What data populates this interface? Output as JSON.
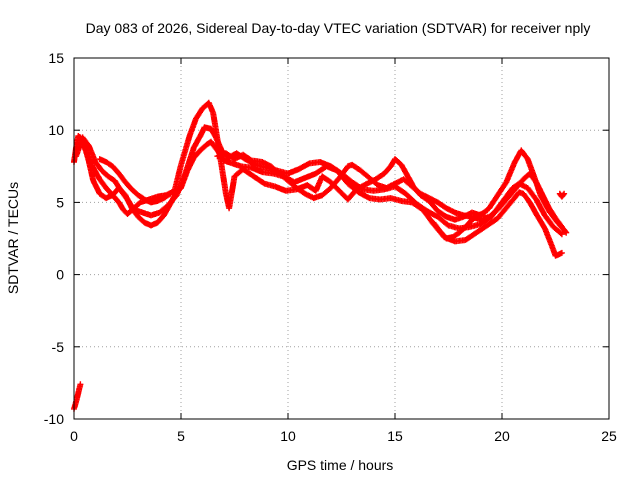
{
  "chart_data": {
    "type": "scatter",
    "title": "Day 083 of 2026, Sidereal Day-to-day VTEC variation (SDTVAR) for receiver nply",
    "xlabel": "GPS time / hours",
    "ylabel": "SDTVAR / TECUs",
    "xlim": [
      0,
      25
    ],
    "ylim": [
      -10,
      15
    ],
    "x_ticks": [
      0,
      5,
      10,
      15,
      20,
      25
    ],
    "x_tick_labels": [
      "0",
      "5",
      "10",
      "15",
      "20",
      "25"
    ],
    "y_ticks": [
      -10,
      -5,
      0,
      5,
      10,
      15
    ],
    "y_tick_labels": [
      "-10",
      "-5",
      "0",
      "5",
      "10",
      "15"
    ],
    "grid": true,
    "marker": "plus",
    "series": [
      {
        "name": "nply",
        "color": "#ff0000",
        "tracks": [
          [
            [
              0,
              -9.3
            ],
            [
              0.1,
              -8.8
            ],
            [
              0.2,
              -8.2
            ],
            [
              0.3,
              -7.6
            ]
          ],
          [
            [
              0,
              7.8
            ],
            [
              0.1,
              8.8
            ],
            [
              0.2,
              9.6
            ],
            [
              0.35,
              9.4
            ],
            [
              0.5,
              8.9
            ],
            [
              0.7,
              7.8
            ],
            [
              0.9,
              6.5
            ],
            [
              1.2,
              5.6
            ],
            [
              1.5,
              5.3
            ],
            [
              1.8,
              5.5
            ],
            [
              2.1,
              6.0
            ],
            [
              2.4,
              5.5
            ],
            [
              2.7,
              4.6
            ],
            [
              3.0,
              4.0
            ],
            [
              3.3,
              3.6
            ],
            [
              3.6,
              3.4
            ],
            [
              3.9,
              3.6
            ],
            [
              4.2,
              4.1
            ],
            [
              4.5,
              4.9
            ],
            [
              4.75,
              5.6
            ],
            [
              5.0,
              6.0
            ],
            [
              5.3,
              7.2
            ],
            [
              5.6,
              8.1
            ],
            [
              5.9,
              8.6
            ],
            [
              6.2,
              9.0
            ],
            [
              6.4,
              9.2
            ],
            [
              6.7,
              8.6
            ],
            [
              7.0,
              7.9
            ],
            [
              7.4,
              7.7
            ],
            [
              7.8,
              7.5
            ],
            [
              8.3,
              7.4
            ],
            [
              8.8,
              7.1
            ],
            [
              9.3,
              7.0
            ],
            [
              9.8,
              6.8
            ],
            [
              10.3,
              6.4
            ],
            [
              10.8,
              6.7
            ],
            [
              11.3,
              7.0
            ],
            [
              11.8,
              7.5
            ],
            [
              12.3,
              7.2
            ],
            [
              12.8,
              6.3
            ],
            [
              13.3,
              5.7
            ],
            [
              13.8,
              5.3
            ],
            [
              14.3,
              5.2
            ],
            [
              14.8,
              5.3
            ],
            [
              15.3,
              5.1
            ],
            [
              15.8,
              5.0
            ],
            [
              16.3,
              4.5
            ],
            [
              16.8,
              3.5
            ],
            [
              17.3,
              2.6
            ],
            [
              17.8,
              2.3
            ],
            [
              18.3,
              2.4
            ],
            [
              18.8,
              2.9
            ],
            [
              19.3,
              3.4
            ],
            [
              19.8,
              3.9
            ],
            [
              20.3,
              4.8
            ],
            [
              20.8,
              5.7
            ],
            [
              21.0,
              5.6
            ],
            [
              21.3,
              5.0
            ],
            [
              21.6,
              4.2
            ],
            [
              22.0,
              3.2
            ],
            [
              22.3,
              2.1
            ],
            [
              22.5,
              1.3
            ],
            [
              22.8,
              1.5
            ]
          ],
          [
            [
              0.1,
              8.2
            ],
            [
              0.4,
              9.5
            ],
            [
              0.7,
              8.9
            ],
            [
              1.0,
              7.8
            ],
            [
              1.3,
              7.2
            ],
            [
              1.6,
              6.8
            ],
            [
              1.9,
              6.5
            ],
            [
              2.2,
              5.8
            ],
            [
              2.5,
              5.2
            ],
            [
              2.8,
              4.5
            ],
            [
              3.2,
              4.3
            ],
            [
              3.6,
              4.1
            ],
            [
              4.0,
              4.3
            ],
            [
              4.4,
              4.8
            ],
            [
              4.8,
              5.5
            ],
            [
              5.2,
              7.0
            ],
            [
              5.6,
              8.8
            ],
            [
              5.9,
              9.6
            ],
            [
              6.1,
              10.2
            ],
            [
              6.4,
              10.1
            ],
            [
              6.6,
              9.6
            ],
            [
              6.9,
              8.6
            ],
            [
              7.2,
              8.1
            ],
            [
              7.6,
              8.4
            ],
            [
              8.0,
              8.0
            ],
            [
              8.5,
              7.6
            ],
            [
              9.0,
              7.4
            ],
            [
              9.5,
              7.2
            ],
            [
              10.0,
              7.0
            ],
            [
              10.5,
              7.3
            ],
            [
              11.0,
              7.7
            ],
            [
              11.5,
              7.8
            ],
            [
              12.0,
              7.5
            ],
            [
              12.5,
              7.0
            ],
            [
              13.0,
              6.4
            ],
            [
              13.5,
              5.9
            ],
            [
              14.0,
              5.8
            ],
            [
              14.5,
              5.9
            ],
            [
              15.0,
              6.1
            ],
            [
              15.5,
              5.6
            ],
            [
              16.0,
              4.9
            ],
            [
              16.5,
              4.4
            ],
            [
              17.0,
              4.0
            ],
            [
              17.5,
              3.4
            ],
            [
              18.0,
              3.2
            ],
            [
              18.5,
              3.3
            ],
            [
              19.0,
              3.5
            ],
            [
              19.5,
              4.0
            ],
            [
              20.0,
              5.0
            ],
            [
              20.5,
              6.0
            ],
            [
              20.8,
              6.3
            ],
            [
              21.2,
              6.0
            ],
            [
              21.6,
              5.2
            ],
            [
              22.0,
              4.1
            ],
            [
              22.4,
              3.3
            ],
            [
              22.8,
              2.8
            ]
          ],
          [
            [
              0.3,
              9.5
            ],
            [
              0.6,
              8.4
            ],
            [
              0.9,
              7.4
            ],
            [
              1.2,
              6.6
            ],
            [
              1.5,
              6.0
            ],
            [
              1.8,
              5.5
            ],
            [
              2.1,
              5.0
            ],
            [
              2.3,
              4.5
            ],
            [
              2.5,
              4.2
            ],
            [
              2.8,
              4.6
            ],
            [
              3.1,
              5.0
            ],
            [
              3.5,
              5.2
            ],
            [
              3.9,
              5.4
            ],
            [
              4.3,
              5.5
            ],
            [
              4.7,
              5.8
            ],
            [
              5.0,
              7.6
            ],
            [
              5.4,
              9.6
            ],
            [
              5.7,
              10.8
            ],
            [
              6.0,
              11.5
            ],
            [
              6.3,
              11.9
            ],
            [
              6.5,
              11.2
            ],
            [
              6.7,
              9.4
            ],
            [
              6.9,
              7.5
            ],
            [
              7.1,
              5.6
            ],
            [
              7.25,
              4.6
            ],
            [
              7.5,
              6.8
            ],
            [
              7.9,
              7.3
            ],
            [
              8.4,
              6.8
            ],
            [
              8.9,
              6.3
            ],
            [
              9.4,
              6.1
            ],
            [
              9.9,
              5.8
            ],
            [
              10.4,
              5.9
            ],
            [
              10.9,
              6.2
            ],
            [
              11.3,
              5.8
            ],
            [
              11.6,
              6.8
            ],
            [
              12.0,
              6.4
            ],
            [
              12.4,
              5.8
            ],
            [
              12.8,
              5.2
            ],
            [
              13.2,
              5.9
            ],
            [
              13.7,
              6.3
            ],
            [
              14.1,
              6.6
            ],
            [
              14.5,
              7.0
            ],
            [
              14.8,
              7.5
            ],
            [
              15.0,
              8.0
            ],
            [
              15.3,
              7.6
            ],
            [
              15.6,
              6.8
            ],
            [
              15.9,
              6.0
            ],
            [
              16.2,
              5.5
            ],
            [
              16.6,
              5.1
            ],
            [
              17.0,
              4.4
            ],
            [
              17.4,
              4.0
            ],
            [
              17.8,
              3.8
            ],
            [
              18.2,
              4.0
            ],
            [
              18.6,
              4.3
            ],
            [
              19.0,
              4.1
            ],
            [
              19.4,
              4.6
            ],
            [
              19.8,
              5.5
            ],
            [
              20.2,
              6.4
            ],
            [
              20.6,
              7.8
            ],
            [
              20.9,
              8.6
            ],
            [
              21.2,
              8.0
            ],
            [
              21.5,
              6.8
            ],
            [
              21.8,
              5.5
            ],
            [
              22.2,
              4.4
            ],
            [
              22.6,
              3.6
            ],
            [
              22.9,
              3.1
            ],
            [
              23.0,
              2.9
            ]
          ],
          [
            [
              1.2,
              8.0
            ],
            [
              1.5,
              7.8
            ],
            [
              1.8,
              7.5
            ],
            [
              2.1,
              7.0
            ],
            [
              2.4,
              6.4
            ],
            [
              2.7,
              5.9
            ],
            [
              3.0,
              5.5
            ],
            [
              3.3,
              5.2
            ],
            [
              3.6,
              5.0
            ],
            [
              3.9,
              5.1
            ],
            [
              4.2,
              5.3
            ],
            [
              4.5,
              5.6
            ]
          ],
          [
            [
              6.7,
              8.2
            ],
            [
              7.1,
              8.4
            ],
            [
              7.5,
              8.0
            ],
            [
              7.9,
              8.3
            ],
            [
              8.3,
              7.9
            ],
            [
              8.8,
              7.8
            ],
            [
              9.2,
              7.5
            ],
            [
              9.6,
              7.0
            ],
            [
              10.0,
              6.5
            ],
            [
              10.4,
              6.0
            ],
            [
              10.8,
              5.6
            ],
            [
              11.2,
              5.3
            ],
            [
              11.6,
              5.5
            ],
            [
              12.0,
              6.0
            ],
            [
              12.4,
              6.7
            ],
            [
              12.8,
              7.5
            ],
            [
              13.0,
              7.6
            ],
            [
              13.4,
              7.2
            ],
            [
              13.8,
              6.7
            ],
            [
              14.2,
              6.2
            ],
            [
              14.6,
              6.0
            ],
            [
              15.0,
              6.3
            ],
            [
              15.4,
              6.6
            ],
            [
              15.8,
              6.1
            ],
            [
              16.2,
              5.6
            ],
            [
              16.6,
              5.3
            ],
            [
              17.0,
              5.0
            ],
            [
              17.4,
              4.6
            ],
            [
              17.8,
              4.3
            ],
            [
              18.2,
              4.1
            ],
            [
              18.6,
              4.0
            ],
            [
              19.0,
              3.8
            ],
            [
              19.4,
              4.0
            ],
            [
              19.8,
              4.5
            ],
            [
              20.2,
              5.2
            ],
            [
              20.6,
              5.9
            ],
            [
              21.0,
              6.6
            ],
            [
              21.3,
              7.0
            ],
            [
              21.6,
              6.4
            ],
            [
              21.9,
              5.5
            ],
            [
              22.2,
              4.6
            ],
            [
              22.5,
              3.9
            ],
            [
              22.8,
              3.3
            ]
          ],
          [
            [
              16.8,
              3.6
            ],
            [
              17.1,
              3.0
            ],
            [
              17.4,
              2.5
            ],
            [
              17.7,
              2.6
            ],
            [
              18.0,
              2.9
            ],
            [
              18.3,
              3.3
            ],
            [
              18.6,
              3.8
            ],
            [
              18.9,
              4.1
            ],
            [
              19.2,
              4.3
            ]
          ],
          [
            [
              22.7,
              5.6
            ],
            [
              22.8,
              5.4
            ],
            [
              22.9,
              5.6
            ]
          ]
        ]
      }
    ]
  }
}
